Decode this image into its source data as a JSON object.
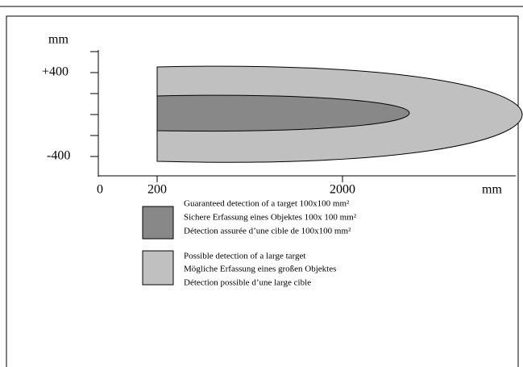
{
  "axes": {
    "y_unit": "mm",
    "y_labels": [
      "+400",
      "-400"
    ],
    "x_labels": [
      "0",
      "200",
      "2000"
    ],
    "x_unit": "mm"
  },
  "legend": [
    {
      "lines": [
        "Guaranteed detection of a target 100x100 mm²",
        "Sichere Erfassung eines Objektes 100x 100 mm²",
        "Détection assurée d’une cible de 100x100 mm²"
      ]
    },
    {
      "lines": [
        "Possible detection of a large target",
        "Mögliche Erfassung eines  großen Objektes",
        "Détection possible d’une large cible"
      ]
    }
  ]
}
